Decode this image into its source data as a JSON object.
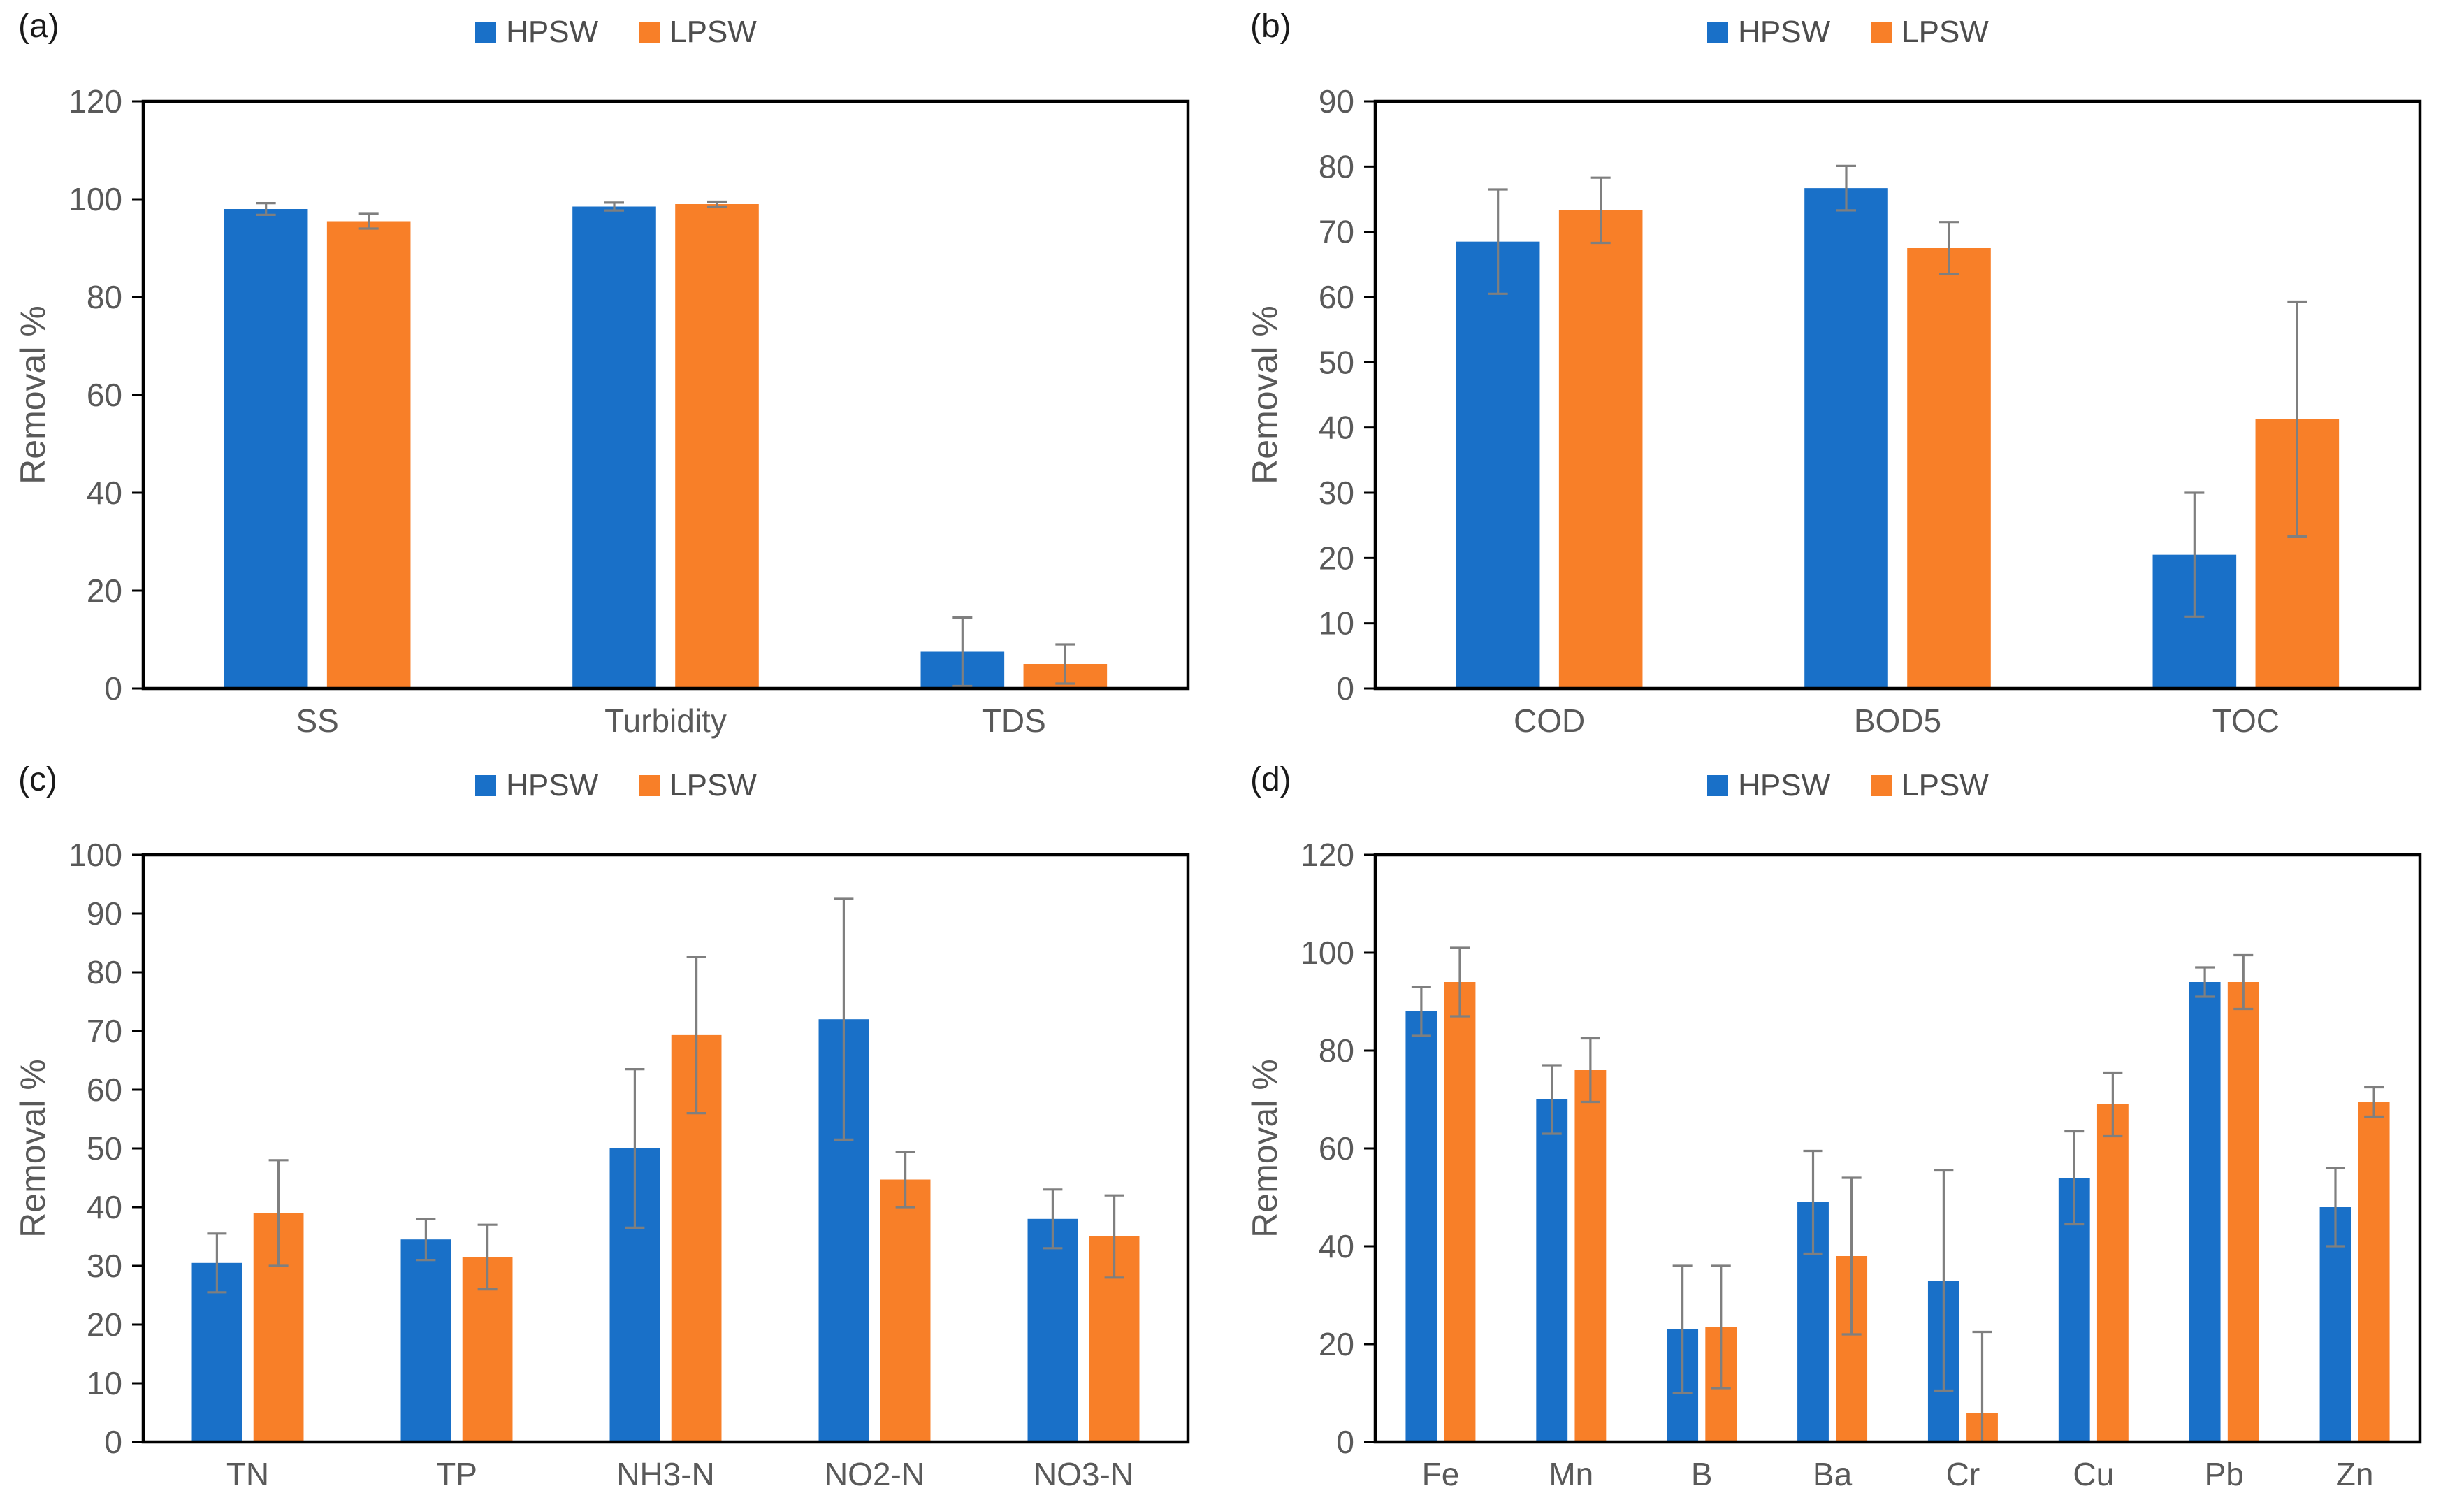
{
  "legend": {
    "hpsw": "HPSW",
    "lpsw": "LPSW"
  },
  "colors": {
    "hpsw": "#1970C8",
    "lpsw": "#F87F28",
    "axis": "#000000",
    "tick_text": "#595959",
    "error_bar": "#7F7F7F",
    "legend_text": "#4d4d4d",
    "background": "#ffffff"
  },
  "chart_data": [
    {
      "type": "bar",
      "panel": "(a)",
      "title": "",
      "xlabel": "",
      "ylabel": "Removal %",
      "ylim": [
        0,
        120
      ],
      "ytick_step": 20,
      "grid": false,
      "legend_position": "top-center",
      "categories": [
        "SS",
        "Turbidity",
        "TDS"
      ],
      "series": [
        {
          "name": "HPSW",
          "values": [
            98,
            98.5,
            7.5
          ],
          "errors": [
            1.2,
            0.8,
            7
          ]
        },
        {
          "name": "LPSW",
          "values": [
            95.5,
            99,
            5
          ],
          "errors": [
            1.5,
            0.5,
            4
          ]
        }
      ]
    },
    {
      "type": "bar",
      "panel": "(b)",
      "title": "",
      "xlabel": "",
      "ylabel": "Removal %",
      "ylim": [
        0,
        90
      ],
      "ytick_step": 10,
      "grid": false,
      "legend_position": "top-center",
      "categories": [
        "COD",
        "BOD5",
        "TOC"
      ],
      "series": [
        {
          "name": "HPSW",
          "values": [
            68.5,
            76.7,
            20.5
          ],
          "errors": [
            8,
            3.4,
            9.5
          ]
        },
        {
          "name": "LPSW",
          "values": [
            73.3,
            67.5,
            41.3
          ],
          "errors": [
            5,
            4,
            18
          ]
        }
      ]
    },
    {
      "type": "bar",
      "panel": "(c)",
      "title": "",
      "xlabel": "",
      "ylabel": "Removal %",
      "ylim": [
        0,
        100
      ],
      "ytick_step": 10,
      "grid": false,
      "legend_position": "top-center",
      "categories": [
        "TN",
        "TP",
        "NH3-N",
        "NO2-N",
        "NO3-N"
      ],
      "series": [
        {
          "name": "HPSW",
          "values": [
            30.5,
            34.5,
            50,
            72,
            38
          ],
          "errors": [
            5,
            3.5,
            13.5,
            20.5,
            5
          ]
        },
        {
          "name": "LPSW",
          "values": [
            39,
            31.5,
            69.3,
            44.7,
            35
          ],
          "errors": [
            9,
            5.5,
            13.3,
            4.7,
            7
          ]
        }
      ]
    },
    {
      "type": "bar",
      "panel": "(d)",
      "title": "",
      "xlabel": "",
      "ylabel": "Removal %",
      "ylim": [
        0,
        120
      ],
      "ytick_step": 20,
      "grid": false,
      "legend_position": "top-center",
      "categories": [
        "Fe",
        "Mn",
        "B",
        "Ba",
        "Cr",
        "Cu",
        "Pb",
        "Zn"
      ],
      "series": [
        {
          "name": "HPSW",
          "values": [
            88,
            70,
            23,
            49,
            33,
            54,
            94,
            48
          ],
          "errors": [
            5,
            7,
            13,
            10.5,
            22.5,
            9.5,
            3,
            8
          ]
        },
        {
          "name": "LPSW",
          "values": [
            94,
            76,
            23.5,
            38,
            6,
            69,
            94,
            69.5
          ],
          "errors": [
            7,
            6.5,
            12.5,
            16,
            16.5,
            6.5,
            5.5,
            3
          ]
        }
      ]
    }
  ]
}
